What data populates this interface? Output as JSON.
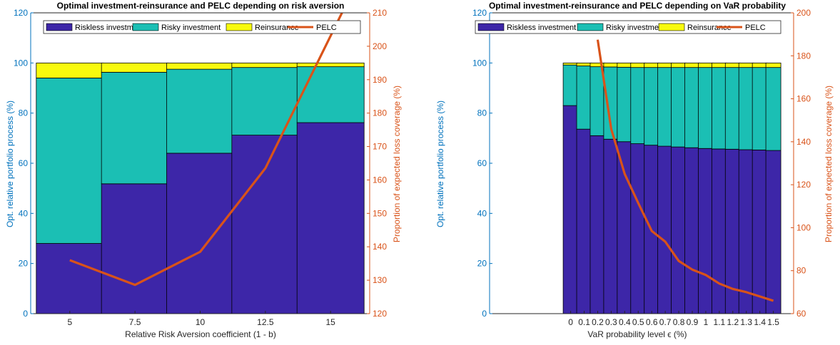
{
  "chart_data": [
    {
      "type": "bar",
      "stacked": true,
      "title": "Optimal investment-reinsurance and PELC depending on risk aversion",
      "xlabel": "Relative Risk Aversion coefficient (1 - b)",
      "ylabel": "Opt. relative portfolio process (%)",
      "y2label": "Proportion of expected loss coverage (%)",
      "categories": [
        "5",
        "7.5",
        "10",
        "12.5",
        "15"
      ],
      "xlim": [
        3.5,
        16.5
      ],
      "x": [
        5,
        7.5,
        10,
        12.5,
        15
      ],
      "ylim": [
        0,
        120
      ],
      "y2lim": [
        120,
        210
      ],
      "yticks": [
        "0",
        "20",
        "40",
        "60",
        "80",
        "100",
        "120"
      ],
      "y2ticks": [
        "120",
        "130",
        "140",
        "150",
        "160",
        "170",
        "180",
        "190",
        "200",
        "210"
      ],
      "series": [
        {
          "name": "Riskless investment",
          "values": [
            28,
            51.8,
            64,
            71.2,
            76.2
          ]
        },
        {
          "name": "Risky investment",
          "values": [
            66,
            44.5,
            33.5,
            27,
            22.3
          ]
        },
        {
          "name": "Reinsurance",
          "values": [
            6,
            3.7,
            2.5,
            1.8,
            1.5
          ]
        }
      ],
      "line": {
        "name": "PELC",
        "x": [
          5,
          7.5,
          10,
          12.5,
          15.5
        ],
        "values": [
          136,
          128.6,
          138.5,
          163.5,
          211
        ]
      },
      "legend": "top",
      "grid": false
    },
    {
      "type": "bar",
      "stacked": true,
      "title": "Optimal investment-reinsurance and PELC depending on VaR probability",
      "xlabel": "VaR probability level ϵ (%)",
      "ylabel": "Opt. relative portfolio process (%)",
      "y2label": "Proportion of expected loss coverage (%)",
      "categories": [
        "0",
        "0.1",
        "0.2",
        "0.3",
        "0.4",
        "0.5",
        "0.6",
        "0.7",
        "0.8",
        "0.9",
        "1",
        "1.1",
        "1.2",
        "1.3",
        "1.4",
        "1.5"
      ],
      "xlim": [
        -0.6,
        1.65
      ],
      "x": [
        0,
        0.1,
        0.2,
        0.3,
        0.4,
        0.5,
        0.6,
        0.7,
        0.8,
        0.9,
        1,
        1.1,
        1.2,
        1.3,
        1.4,
        1.5
      ],
      "ylim": [
        0,
        120
      ],
      "y2lim": [
        60,
        200
      ],
      "yticks": [
        "0",
        "20",
        "40",
        "60",
        "80",
        "100",
        "120"
      ],
      "y2ticks": [
        "60",
        "80",
        "100",
        "120",
        "140",
        "160",
        "180",
        "200"
      ],
      "series": [
        {
          "name": "Riskless investment",
          "values": [
            83,
            73.6,
            71,
            69.6,
            68.6,
            67.8,
            67.2,
            66.8,
            66.5,
            66.2,
            65.9,
            65.7,
            65.6,
            65.4,
            65.3,
            65.1
          ]
        },
        {
          "name": "Risky investment",
          "values": [
            16.2,
            25.2,
            27.5,
            28.8,
            29.7,
            30.4,
            31,
            31.4,
            31.7,
            32,
            32.3,
            32.5,
            32.6,
            32.8,
            32.9,
            33.1
          ]
        },
        {
          "name": "Reinsurance",
          "values": [
            0.8,
            1.2,
            1.5,
            1.6,
            1.7,
            1.8,
            1.8,
            1.8,
            1.8,
            1.8,
            1.8,
            1.8,
            1.8,
            1.8,
            1.8,
            1.8
          ]
        }
      ],
      "line": {
        "name": "PELC",
        "x": [
          0.2,
          0.3,
          0.4,
          0.5,
          0.6,
          0.7,
          0.8,
          0.9,
          1,
          1.1,
          1.2,
          1.3,
          1.4,
          1.5
        ],
        "values": [
          187.5,
          146,
          125,
          111.5,
          98.5,
          93.5,
          84.5,
          80.5,
          78,
          74,
          71.5,
          70,
          68,
          66
        ]
      },
      "legend": "top",
      "grid": false
    }
  ],
  "colors": {
    "riskless": "#3d26a8",
    "risky": "#1bbfb4",
    "reinsurance": "#f8fa0d",
    "pelc": "#d95319",
    "left_axis": "#0072bd",
    "right_axis": "#d95319",
    "axis_dark": "#262626"
  }
}
